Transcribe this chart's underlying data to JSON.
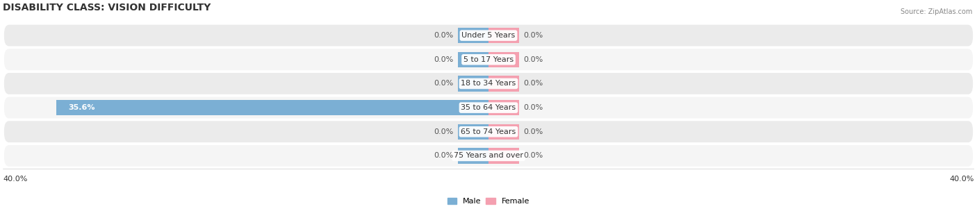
{
  "title": "DISABILITY CLASS: VISION DIFFICULTY",
  "source": "Source: ZipAtlas.com",
  "categories": [
    "Under 5 Years",
    "5 to 17 Years",
    "18 to 34 Years",
    "35 to 64 Years",
    "65 to 74 Years",
    "75 Years and over"
  ],
  "male_values": [
    0.0,
    0.0,
    0.0,
    35.6,
    0.0,
    0.0
  ],
  "female_values": [
    0.0,
    0.0,
    0.0,
    0.0,
    0.0,
    0.0
  ],
  "male_color": "#7bafd4",
  "female_color": "#f4a0b0",
  "row_bg_color": "#ebebeb",
  "row_bg_color2": "#f5f5f5",
  "xlim": 40.0,
  "title_fontsize": 10,
  "label_fontsize": 8,
  "tick_fontsize": 8,
  "stub_size": 2.5
}
